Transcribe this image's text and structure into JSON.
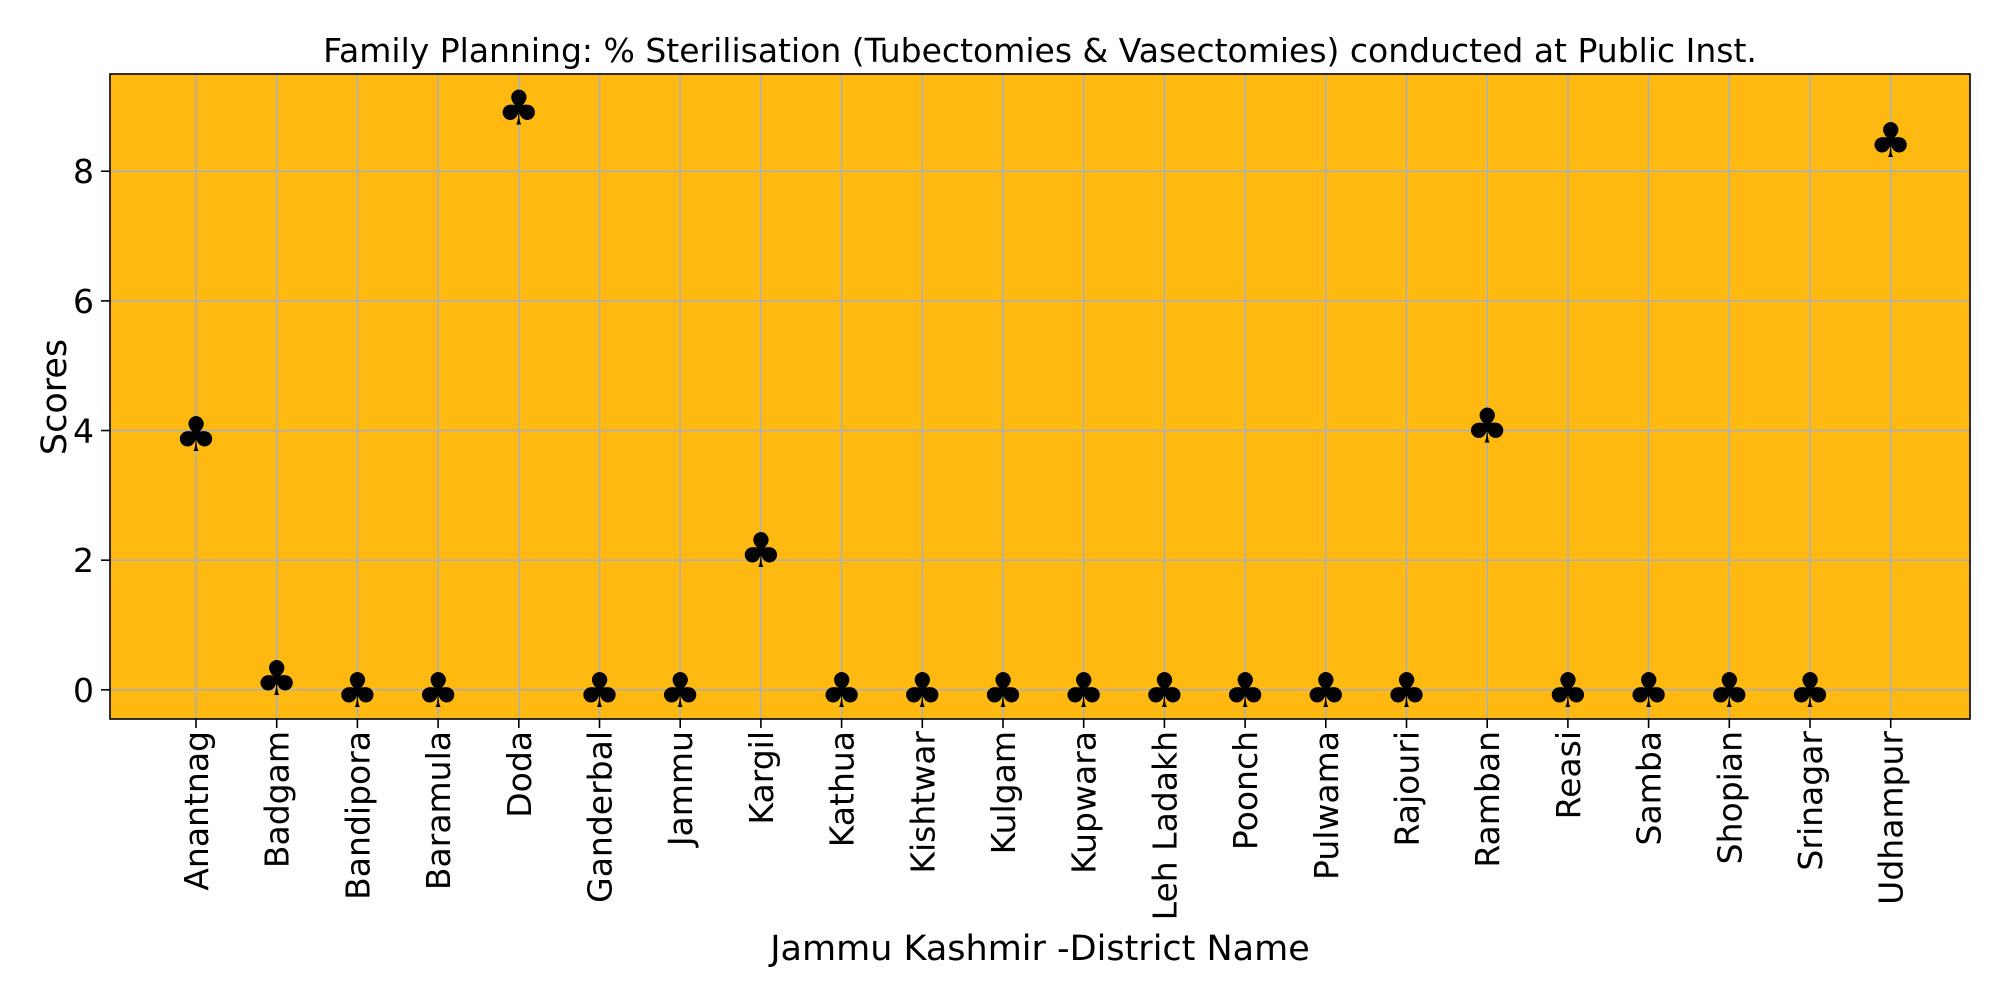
{
  "chart_data": {
    "type": "scatter",
    "title": "Family Planning: % Sterilisation (Tubectomies & Vasectomies) conducted at Public Inst.",
    "xlabel": "Jammu Kashmir -District Name",
    "ylabel": "Scores",
    "categories": [
      "Anantnag",
      "Badgam",
      "Bandipora",
      "Baramula",
      "Doda",
      "Ganderbal",
      "Jammu",
      "Kargil",
      "Kathua",
      "Kishtwar",
      "Kulgam",
      "Kupwara",
      "Leh Ladakh",
      "Poonch",
      "Pulwama",
      "Rajouri",
      "Ramban",
      "Reasi",
      "Samba",
      "Shopian",
      "Srinagar",
      "Udhampur"
    ],
    "values": [
      3.95,
      0.18,
      0,
      0,
      8.98,
      0,
      0,
      2.16,
      0,
      0,
      0,
      0,
      0,
      0,
      0,
      0,
      4.08,
      0,
      0,
      0,
      0,
      8.48
    ],
    "ylim": [
      -0.45,
      9.5
    ],
    "yticks": [
      0,
      2,
      4,
      6,
      8
    ],
    "grid": true,
    "marker": "♣",
    "colors": {
      "plot_background": "#ffb911",
      "marker": "#006400",
      "grid": "#b0b0b0"
    }
  }
}
